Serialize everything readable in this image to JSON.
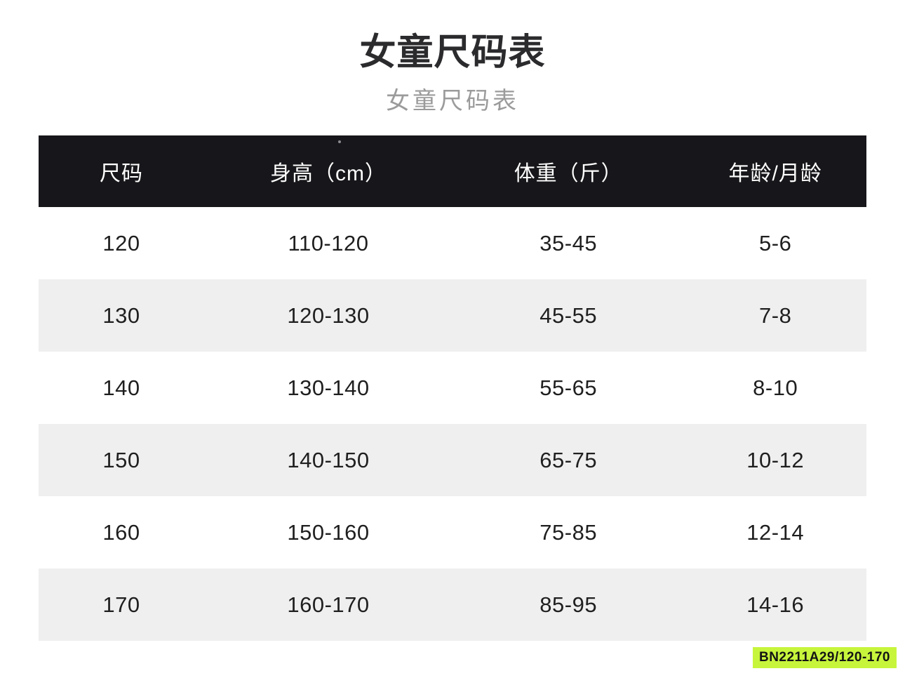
{
  "page": {
    "background_color": "#ffffff"
  },
  "header": {
    "title": "女童尺码表",
    "subtitle": "女童尺码表"
  },
  "table": {
    "header_bg_color": "#17171b",
    "header_text_color": "#ffffff",
    "row_alt_bg_color": "#efefef",
    "body_text_color": "#1f1f1f",
    "columns": [
      "尺码",
      "身高（cm）",
      "体重（斤）",
      "年龄/月龄"
    ],
    "rows": [
      [
        "120",
        "110-120",
        "35-45",
        "5-6"
      ],
      [
        "130",
        "120-130",
        "45-55",
        "7-8"
      ],
      [
        "140",
        "130-140",
        "55-65",
        "8-10"
      ],
      [
        "150",
        "140-150",
        "65-75",
        "10-12"
      ],
      [
        "160",
        "150-160",
        "75-85",
        "12-14"
      ],
      [
        "170",
        "160-170",
        "85-95",
        "14-16"
      ]
    ]
  },
  "footer": {
    "badge_text": "BN2211A29/120-170",
    "badge_bg_color": "#c7f53c",
    "badge_text_color": "#141414"
  },
  "chart_data": {
    "type": "table",
    "title": "女童尺码表",
    "subtitle": "女童尺码表",
    "columns": [
      "尺码",
      "身高（cm）",
      "体重（斤）",
      "年龄/月龄"
    ],
    "rows": [
      [
        "120",
        "110-120",
        "35-45",
        "5-6"
      ],
      [
        "130",
        "120-130",
        "45-55",
        "7-8"
      ],
      [
        "140",
        "130-140",
        "55-65",
        "8-10"
      ],
      [
        "150",
        "140-150",
        "65-75",
        "10-12"
      ],
      [
        "160",
        "150-160",
        "75-85",
        "12-14"
      ],
      [
        "170",
        "160-170",
        "85-95",
        "14-16"
      ]
    ],
    "notes": "Alternating white and light-gray (#efefef) data rows; black (#17171b) header band; product code badge BN2211A29/120-170 on chartreuse (#c7f53c) background at bottom right."
  }
}
